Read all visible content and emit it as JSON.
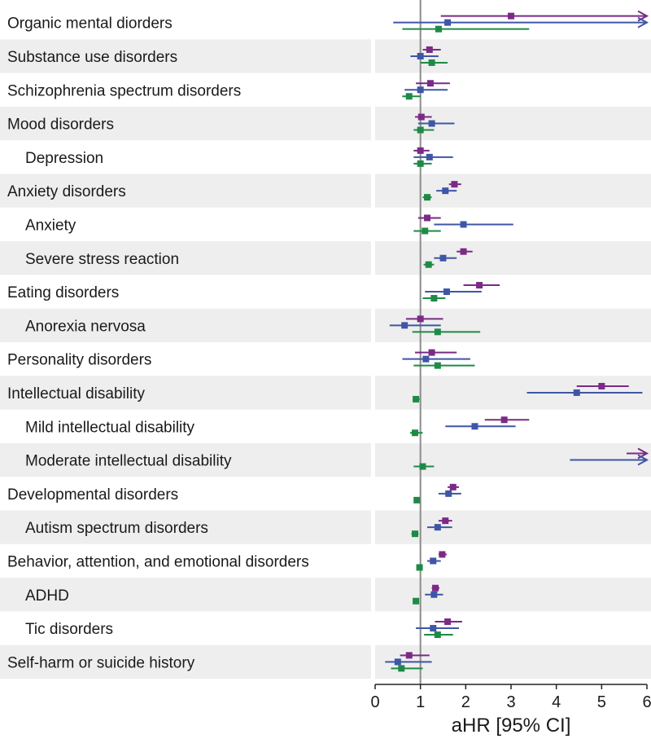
{
  "chart_data": {
    "type": "forest",
    "xlabel": "aHR [95% CI]",
    "xlim": [
      0,
      6
    ],
    "xticks": [
      0,
      1,
      2,
      3,
      4,
      5,
      6
    ],
    "reference_line": 1,
    "colors": {
      "series_a": "#7b2a86",
      "series_b": "#3f56a6",
      "series_c": "#1e8a46",
      "reference": "#8c8c8c",
      "band": "#eeeeee"
    },
    "series": [
      {
        "name": "series_a",
        "color": "#7b2a86"
      },
      {
        "name": "series_b",
        "color": "#3f56a6"
      },
      {
        "name": "series_c",
        "color": "#1e8a46"
      }
    ],
    "rows": [
      {
        "label": "Organic mental diorders",
        "indent": false,
        "a": {
          "est": 3.0,
          "lo": 1.45,
          "hi": 6.0,
          "arrow": true
        },
        "b": {
          "est": 1.6,
          "lo": 0.4,
          "hi": 6.0,
          "arrow": true
        },
        "c": {
          "est": 1.4,
          "lo": 0.6,
          "hi": 3.4
        }
      },
      {
        "label": "Substance use disorders",
        "indent": false,
        "a": {
          "est": 1.2,
          "lo": 1.05,
          "hi": 1.45
        },
        "b": {
          "est": 1.0,
          "lo": 0.78,
          "hi": 1.4
        },
        "c": {
          "est": 1.25,
          "lo": 1.0,
          "hi": 1.6
        }
      },
      {
        "label": "Schizophrenia spectrum disorders",
        "indent": false,
        "a": {
          "est": 1.22,
          "lo": 0.9,
          "hi": 1.65
        },
        "b": {
          "est": 1.0,
          "lo": 0.65,
          "hi": 1.6
        },
        "c": {
          "est": 0.75,
          "lo": 0.6,
          "hi": 1.0
        }
      },
      {
        "label": "Mood disorders",
        "indent": false,
        "a": {
          "est": 1.02,
          "lo": 0.88,
          "hi": 1.25
        },
        "b": {
          "est": 1.25,
          "lo": 0.95,
          "hi": 1.75
        },
        "c": {
          "est": 1.0,
          "lo": 0.85,
          "hi": 1.3
        }
      },
      {
        "label": "Depression",
        "indent": true,
        "a": {
          "est": 1.0,
          "lo": 0.85,
          "hi": 1.2
        },
        "b": {
          "est": 1.2,
          "lo": 0.85,
          "hi": 1.72
        },
        "c": {
          "est": 1.0,
          "lo": 0.85,
          "hi": 1.25
        }
      },
      {
        "label": "Anxiety disorders",
        "indent": false,
        "a": {
          "est": 1.75,
          "lo": 1.63,
          "hi": 1.9
        },
        "b": {
          "est": 1.55,
          "lo": 1.35,
          "hi": 1.8
        },
        "c": {
          "est": 1.15,
          "lo": 1.05,
          "hi": 1.25
        }
      },
      {
        "label": "Anxiety",
        "indent": true,
        "a": {
          "est": 1.15,
          "lo": 0.95,
          "hi": 1.45
        },
        "b": {
          "est": 1.95,
          "lo": 1.3,
          "hi": 3.05
        },
        "c": {
          "est": 1.1,
          "lo": 0.85,
          "hi": 1.45
        }
      },
      {
        "label": "Severe stress reaction",
        "indent": true,
        "a": {
          "est": 1.95,
          "lo": 1.8,
          "hi": 2.15
        },
        "b": {
          "est": 1.5,
          "lo": 1.3,
          "hi": 1.8
        },
        "c": {
          "est": 1.18,
          "lo": 1.07,
          "hi": 1.3
        }
      },
      {
        "label": "Eating disorders",
        "indent": false,
        "a": {
          "est": 2.3,
          "lo": 1.95,
          "hi": 2.75
        },
        "b": {
          "est": 1.58,
          "lo": 1.1,
          "hi": 2.35
        },
        "c": {
          "est": 1.3,
          "lo": 1.05,
          "hi": 1.55
        }
      },
      {
        "label": "Anorexia nervosa",
        "indent": true,
        "a": {
          "est": 1.0,
          "lo": 0.68,
          "hi": 1.5
        },
        "b": {
          "est": 0.65,
          "lo": 0.32,
          "hi": 1.45
        },
        "c": {
          "est": 1.38,
          "lo": 0.82,
          "hi": 2.32
        }
      },
      {
        "label": "Personality disorders",
        "indent": false,
        "a": {
          "est": 1.25,
          "lo": 0.88,
          "hi": 1.8
        },
        "b": {
          "est": 1.12,
          "lo": 0.6,
          "hi": 2.1
        },
        "c": {
          "est": 1.38,
          "lo": 0.85,
          "hi": 2.2
        }
      },
      {
        "label": "Intellectual disability",
        "indent": false,
        "a": {
          "est": 5.0,
          "lo": 4.45,
          "hi": 5.6
        },
        "b": {
          "est": 4.45,
          "lo": 3.35,
          "hi": 5.9
        },
        "c": {
          "est": 0.9,
          "lo": 0.83,
          "hi": 0.98
        }
      },
      {
        "label": "Mild intellectual disability",
        "indent": true,
        "a": {
          "est": 2.85,
          "lo": 2.42,
          "hi": 3.4
        },
        "b": {
          "est": 2.2,
          "lo": 1.55,
          "hi": 3.1
        },
        "c": {
          "est": 0.88,
          "lo": 0.77,
          "hi": 1.05
        }
      },
      {
        "label": "Moderate intellectual disability",
        "indent": true,
        "a": {
          "est": null,
          "lo": 5.55,
          "hi": 6.0,
          "arrow": true
        },
        "b": {
          "est": null,
          "lo": 4.3,
          "hi": 6.0,
          "arrow": true
        },
        "c": {
          "est": 1.05,
          "lo": 0.85,
          "hi": 1.3
        }
      },
      {
        "label": "Developmental disorders",
        "indent": false,
        "a": {
          "est": 1.72,
          "lo": 1.6,
          "hi": 1.85
        },
        "b": {
          "est": 1.62,
          "lo": 1.4,
          "hi": 1.9
        },
        "c": {
          "est": 0.92,
          "lo": 0.88,
          "hi": 0.97
        }
      },
      {
        "label": "Autism spectrum disorders",
        "indent": true,
        "a": {
          "est": 1.55,
          "lo": 1.4,
          "hi": 1.7
        },
        "b": {
          "est": 1.38,
          "lo": 1.15,
          "hi": 1.7
        },
        "c": {
          "est": 0.88,
          "lo": 0.8,
          "hi": 0.96
        }
      },
      {
        "label": "Behavior, attention, and emotional disorders",
        "indent": false,
        "a": {
          "est": 1.48,
          "lo": 1.4,
          "hi": 1.58
        },
        "b": {
          "est": 1.28,
          "lo": 1.15,
          "hi": 1.45
        },
        "c": {
          "est": 0.98,
          "lo": 0.94,
          "hi": 1.02
        }
      },
      {
        "label": "ADHD",
        "indent": true,
        "a": {
          "est": 1.33,
          "lo": 1.25,
          "hi": 1.42
        },
        "b": {
          "est": 1.3,
          "lo": 1.1,
          "hi": 1.5
        },
        "c": {
          "est": 0.9,
          "lo": 0.84,
          "hi": 0.96
        }
      },
      {
        "label": "Tic disorders",
        "indent": true,
        "a": {
          "est": 1.6,
          "lo": 1.32,
          "hi": 1.92
        },
        "b": {
          "est": 1.28,
          "lo": 0.9,
          "hi": 1.85
        },
        "c": {
          "est": 1.38,
          "lo": 1.08,
          "hi": 1.72
        }
      },
      {
        "label": "Self-harm or suicide history",
        "indent": false,
        "a": {
          "est": 0.75,
          "lo": 0.55,
          "hi": 1.2
        },
        "b": {
          "est": 0.5,
          "lo": 0.22,
          "hi": 1.25
        },
        "c": {
          "est": 0.58,
          "lo": 0.35,
          "hi": 1.05
        }
      }
    ]
  }
}
